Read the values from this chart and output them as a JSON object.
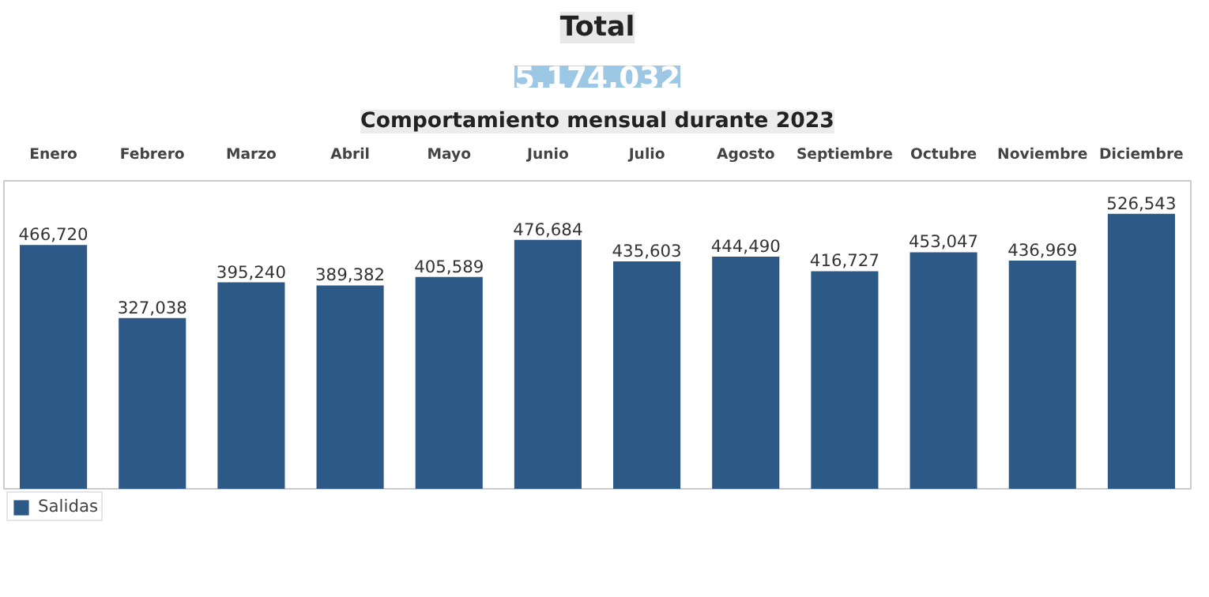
{
  "chart_data": [
    {
      "type": "other",
      "title": "Total",
      "annotations": [
        "5,174,032"
      ],
      "colors": [
        "#e8e8e8",
        "#9cc7e5"
      ]
    },
    {
      "type": "bar",
      "title": "Comportamiento mensual durante 2023",
      "categories": [
        "Enero",
        "Febrero",
        "Marzo",
        "Abril",
        "Mayo",
        "Junio",
        "Julio",
        "Agosto",
        "Septiembre",
        "Octubre",
        "Noviembre",
        "Diciembre"
      ],
      "series": [
        {
          "name": "Salidas",
          "color": "#2c5985",
          "values": [
            466720,
            327038,
            395240,
            389382,
            405589,
            476684,
            435603,
            444490,
            416727,
            453047,
            436969,
            526543
          ],
          "value_labels": [
            "466,720",
            "327,038",
            "395,240",
            "389,382",
            "405,589",
            "476,684",
            "435,603",
            "444,490",
            "416,727",
            "453,047",
            "436,969",
            "526,543"
          ]
        }
      ],
      "legend": "bottom left",
      "grid": false
    }
  ]
}
